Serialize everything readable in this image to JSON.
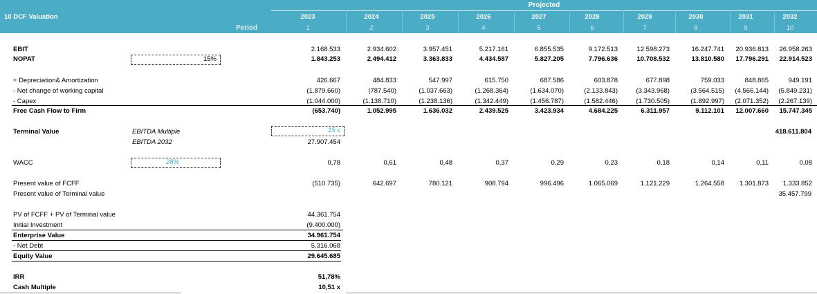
{
  "header": {
    "title": "10 DCF Valuation",
    "period_label": "Period",
    "projected_label": "Projected",
    "years": [
      "2023",
      "2024",
      "2025",
      "2026",
      "2027",
      "2028",
      "2029",
      "2030",
      "2031",
      "2032"
    ],
    "periods": [
      "1",
      "2",
      "3",
      "4",
      "5",
      "6",
      "7",
      "8",
      "9",
      "10"
    ]
  },
  "rows": {
    "ebit": {
      "label": "EBIT",
      "values": [
        "2.168.533",
        "2.934.602",
        "3.957.451",
        "5.217.161",
        "6.855.535",
        "9.172.513",
        "12.598.273",
        "16.247.741",
        "20.936.813",
        "26.958.263"
      ]
    },
    "nopat": {
      "label": "NOPAT",
      "tax_rate": "15%",
      "values": [
        "1.843.253",
        "2.494.412",
        "3.363.833",
        "4.434.587",
        "5.827.205",
        "7.796.636",
        "10.708.532",
        "13.810.580",
        "17.796.291",
        "22.914.523"
      ]
    },
    "da": {
      "label": "+ Depreciation& Amortization",
      "values": [
        "426.667",
        "484.833",
        "547.997",
        "615.750",
        "687.586",
        "603.878",
        "677.898",
        "759.033",
        "848.865",
        "949.191"
      ]
    },
    "nwc": {
      "label": "- Net change of working capital",
      "values": [
        "(1.879.660)",
        "(787.540)",
        "(1.037.663)",
        "(1.268.364)",
        "(1.634.070)",
        "(2.133.843)",
        "(3.343.968)",
        "(3.564.515)",
        "(4.566.144)",
        "(5.849.231)"
      ]
    },
    "capex": {
      "label": "- Capex",
      "values": [
        "(1.044.000)",
        "(1.138.710)",
        "(1.238.136)",
        "(1.342.449)",
        "(1.456.787)",
        "(1.582.446)",
        "(1.730.505)",
        "(1.892.997)",
        "(2.071.352)",
        "(2.267.139)"
      ]
    },
    "fcff": {
      "label": "Free Cash Flow to Firm",
      "values": [
        "(653.740)",
        "1.052.995",
        "1.636.032",
        "2.439.525",
        "3.423.934",
        "4.684.225",
        "6.311.957",
        "9.112.101",
        "12.007.660",
        "15.747.345"
      ]
    },
    "terminal": {
      "label": "Terminal Value",
      "method": "EBITDA Multiple",
      "multiple": "15 x",
      "ebitda_label": "EBITDA 2032",
      "ebitda_value": "27.907.454",
      "value_2032": "418.611.804"
    },
    "wacc": {
      "label": "WACC",
      "rate": "28%",
      "values": [
        "0,78",
        "0,61",
        "0,48",
        "0,37",
        "0,29",
        "0,23",
        "0,18",
        "0,14",
        "0,11",
        "0,08"
      ]
    },
    "pv_fcff": {
      "label": "Present value of FCFF",
      "values": [
        "(510.735)",
        "642.697",
        "780.121",
        "908.794",
        "996.496",
        "1.065.069",
        "1.121.229",
        "1.264.558",
        "1.301.873",
        "1.333.852"
      ]
    },
    "pv_tv": {
      "label": "Present value of Terminal value",
      "value": "35.457.799"
    }
  },
  "summary": [
    {
      "label": "PV of FCFF + PV of Terminal value",
      "value": "44.361.754",
      "bold": false
    },
    {
      "label": "Initial Investment",
      "value": "(9.400.000)",
      "bold": false
    },
    {
      "label": "Enterprise Value",
      "value": "34.961.754",
      "bold": true
    },
    {
      "label": " - Net Debt",
      "value": "5.316.068",
      "bold": false
    },
    {
      "label": "Equity Value",
      "value": "29.645.685",
      "bold": true
    }
  ],
  "returns": {
    "irr_label": "IRR",
    "irr": "51,78%",
    "cash_label": "Cash Multiple",
    "cash": "10,51 x"
  }
}
